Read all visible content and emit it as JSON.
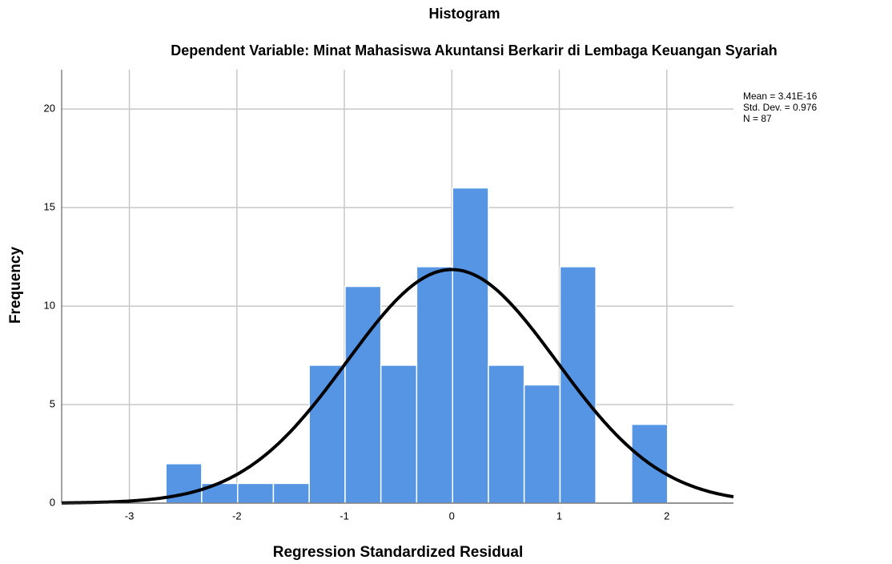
{
  "chart_data": {
    "type": "histogram",
    "title": "Histogram",
    "subtitle": "Dependent Variable: Minat Mahasiswa Akuntansi Berkarir di Lembaga Keuangan Syariah",
    "xlabel": "Regression Standardized Residual",
    "ylabel": "Frequency",
    "annotations": [
      "Mean = 3.41E-16",
      "Std. Dev. = 0.976",
      "N = 87"
    ],
    "bins": [
      -2.66,
      -2.327,
      -1.993,
      -1.66,
      -1.327,
      -0.993,
      -0.66,
      -0.327,
      0.007,
      0.34,
      0.673,
      1.007,
      1.34,
      1.673,
      2.007
    ],
    "values": [
      2,
      1,
      1,
      1,
      7,
      11,
      7,
      12,
      16,
      7,
      6,
      12,
      0,
      4
    ],
    "color": "#5595e3",
    "curve": {
      "mean": 3.41e-16,
      "std": 0.976,
      "n": 87,
      "color": "#000000"
    },
    "xlim": [
      -3.63,
      2.62
    ],
    "xticks": [
      -3,
      -2,
      -1,
      0,
      1,
      2
    ],
    "ylim": [
      0,
      22
    ],
    "yticks": [
      0,
      5,
      10,
      15,
      20
    ],
    "grid": true
  }
}
